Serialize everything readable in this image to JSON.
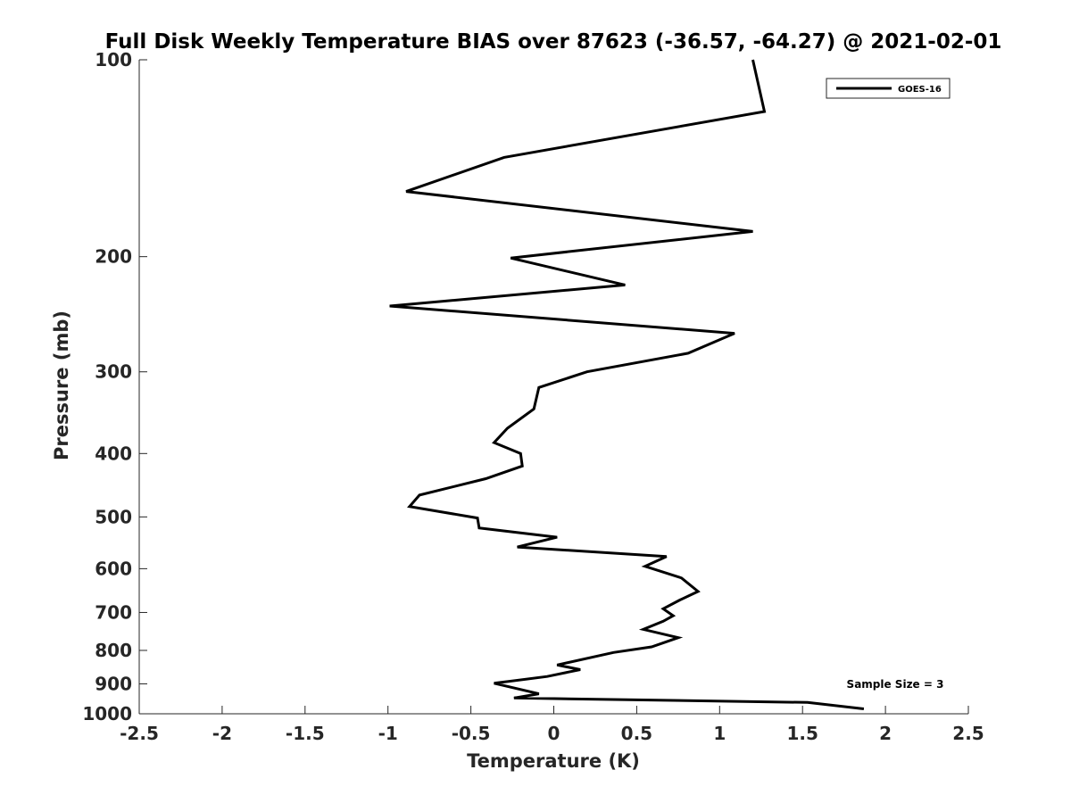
{
  "chart_data": {
    "type": "line",
    "title": "Full Disk Weekly Temperature BIAS over 87623 (-36.57, -64.27) @ 2021-02-01",
    "xlabel": "Temperature (K)",
    "ylabel": "Pressure (mb)",
    "xlim": [
      -2.5,
      2.5
    ],
    "ylim": [
      1000,
      100
    ],
    "yscale": "log",
    "y_reversed": true,
    "x_ticks": [
      "-2.5",
      "-2",
      "-1.5",
      "-1",
      "-0.5",
      "0",
      "0.5",
      "1",
      "1.5",
      "2",
      "2.5"
    ],
    "x_tick_values": [
      -2.5,
      -2,
      -1.5,
      -1,
      -0.5,
      0,
      0.5,
      1,
      1.5,
      2,
      2.5
    ],
    "y_ticks": [
      "100",
      "200",
      "300",
      "400",
      "500",
      "600",
      "700",
      "800",
      "900",
      "1000"
    ],
    "y_tick_values": [
      100,
      200,
      300,
      400,
      500,
      600,
      700,
      800,
      900,
      1000
    ],
    "grid": false,
    "legend_position": "top-right",
    "series": [
      {
        "name": "GOES-16",
        "color": "#000000",
        "points": [
          {
            "x": 1.2,
            "y": 100
          },
          {
            "x": 1.27,
            "y": 120
          },
          {
            "x": -0.3,
            "y": 141
          },
          {
            "x": -0.89,
            "y": 159
          },
          {
            "x": 1.2,
            "y": 183
          },
          {
            "x": -0.26,
            "y": 201
          },
          {
            "x": 0.43,
            "y": 221
          },
          {
            "x": -0.99,
            "y": 238
          },
          {
            "x": 1.09,
            "y": 262
          },
          {
            "x": 0.81,
            "y": 281
          },
          {
            "x": 0.2,
            "y": 300
          },
          {
            "x": -0.09,
            "y": 317
          },
          {
            "x": -0.12,
            "y": 342
          },
          {
            "x": -0.28,
            "y": 366
          },
          {
            "x": -0.36,
            "y": 385
          },
          {
            "x": -0.2,
            "y": 400
          },
          {
            "x": -0.19,
            "y": 418
          },
          {
            "x": -0.41,
            "y": 437
          },
          {
            "x": -0.81,
            "y": 463
          },
          {
            "x": -0.87,
            "y": 482
          },
          {
            "x": -0.46,
            "y": 502
          },
          {
            "x": -0.45,
            "y": 520
          },
          {
            "x": 0.02,
            "y": 537
          },
          {
            "x": -0.22,
            "y": 556
          },
          {
            "x": 0.68,
            "y": 575
          },
          {
            "x": 0.55,
            "y": 595
          },
          {
            "x": 0.77,
            "y": 620
          },
          {
            "x": 0.87,
            "y": 650
          },
          {
            "x": 0.76,
            "y": 670
          },
          {
            "x": 0.66,
            "y": 691
          },
          {
            "x": 0.72,
            "y": 708
          },
          {
            "x": 0.66,
            "y": 722
          },
          {
            "x": 0.54,
            "y": 743
          },
          {
            "x": 0.75,
            "y": 765
          },
          {
            "x": 0.59,
            "y": 790
          },
          {
            "x": 0.36,
            "y": 806
          },
          {
            "x": 0.02,
            "y": 842
          },
          {
            "x": 0.16,
            "y": 856
          },
          {
            "x": -0.04,
            "y": 877
          },
          {
            "x": -0.36,
            "y": 898
          },
          {
            "x": -0.09,
            "y": 932
          },
          {
            "x": -0.24,
            "y": 946
          },
          {
            "x": 1.53,
            "y": 961
          },
          {
            "x": 1.87,
            "y": 983
          }
        ]
      }
    ],
    "annotations": [
      {
        "text": "Sample Size = 3"
      }
    ]
  }
}
